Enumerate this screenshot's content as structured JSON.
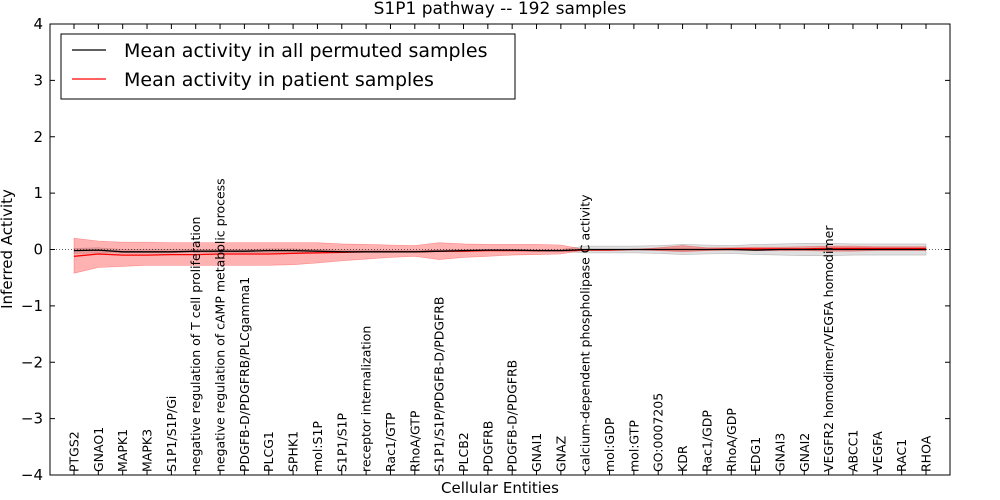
{
  "chart_data": {
    "type": "line",
    "title": "S1P1 pathway -- 192 samples",
    "xlabel": "Cellular Entities",
    "ylabel": "Inferred Activity",
    "ylim": [
      -4,
      4
    ],
    "yticks": [
      -4,
      -3,
      -2,
      -1,
      0,
      1,
      2,
      3,
      4
    ],
    "ytick_labels": [
      "−4",
      "−3",
      "−2",
      "−1",
      "0",
      "1",
      "2",
      "3",
      "4"
    ],
    "legend_position": "top-left",
    "categories": [
      "PTGS2",
      "GNAO1",
      "MAPK1",
      "MAPK3",
      "S1P1/S1P/Gi",
      "negative regulation of T cell proliferation",
      "negative regulation of cAMP metabolic process",
      "PDGFB-D/PDGFRB/PLCgamma1",
      "PLCG1",
      "SPHK1",
      "mol:S1P",
      "S1P1/S1P",
      "receptor internalization",
      "Rac1/GTP",
      "RhoA/GTP",
      "S1P1/S1P/PDGFB-D/PDGFRB",
      "PLCB2",
      "PDGFRB",
      "PDGFB-D/PDGFRB",
      "GNAI1",
      "GNAZ",
      "calcium-dependent phospholipase C activity",
      "mol:GDP",
      "mol:GTP",
      "GO:0007205",
      "KDR",
      "Rac1/GDP",
      "RhoA/GDP",
      "EDG1",
      "GNAI3",
      "GNAI2",
      "VEGFR2 homodimer/VEGFA homodimer",
      "ABCC1",
      "VEGFA",
      "RAC1",
      "RHOA"
    ],
    "series": [
      {
        "name": "Mean activity in all permuted samples",
        "color": "#000000",
        "values": [
          -0.02,
          -0.01,
          -0.04,
          -0.04,
          -0.04,
          -0.03,
          -0.03,
          -0.03,
          -0.02,
          -0.02,
          -0.03,
          -0.04,
          -0.04,
          -0.04,
          -0.04,
          -0.03,
          -0.02,
          -0.01,
          -0.01,
          -0.02,
          -0.02,
          0.0,
          0.0,
          0.0,
          0.0,
          0.0,
          0.0,
          0.0,
          -0.01,
          0.0,
          0.0,
          0.0,
          0.0,
          0.0,
          0.0,
          0.0
        ],
        "band_lower": [
          -0.07,
          -0.06,
          -0.06,
          -0.06,
          -0.06,
          -0.05,
          -0.05,
          -0.05,
          -0.05,
          -0.05,
          -0.05,
          -0.05,
          -0.05,
          -0.05,
          -0.05,
          -0.04,
          -0.03,
          -0.02,
          -0.02,
          -0.03,
          -0.03,
          -0.06,
          -0.06,
          -0.06,
          -0.07,
          -0.09,
          -0.08,
          -0.07,
          -0.09,
          -0.1,
          -0.11,
          -0.11,
          -0.1,
          -0.1,
          -0.1,
          -0.1
        ],
        "band_upper": [
          0.02,
          0.03,
          0.0,
          0.0,
          0.0,
          0.0,
          0.0,
          0.0,
          0.01,
          0.01,
          0.0,
          -0.01,
          -0.01,
          -0.02,
          -0.02,
          -0.01,
          0.0,
          0.0,
          0.0,
          0.0,
          0.0,
          0.06,
          0.06,
          0.06,
          0.07,
          0.09,
          0.08,
          0.07,
          0.09,
          0.1,
          0.11,
          0.11,
          0.1,
          0.1,
          0.1,
          0.1
        ]
      },
      {
        "name": "Mean activity in patient samples",
        "color": "#ff0000",
        "values": [
          -0.12,
          -0.08,
          -0.1,
          -0.1,
          -0.09,
          -0.09,
          -0.08,
          -0.08,
          -0.08,
          -0.07,
          -0.06,
          -0.05,
          -0.04,
          -0.04,
          -0.04,
          -0.03,
          -0.03,
          -0.02,
          -0.02,
          -0.02,
          -0.02,
          -0.01,
          -0.01,
          0.0,
          0.0,
          0.0,
          0.0,
          0.01,
          0.01,
          0.01,
          0.01,
          0.02,
          0.02,
          0.02,
          0.02,
          0.02
        ],
        "band_lower": [
          -0.42,
          -0.32,
          -0.3,
          -0.28,
          -0.28,
          -0.28,
          -0.28,
          -0.28,
          -0.28,
          -0.27,
          -0.24,
          -0.2,
          -0.17,
          -0.14,
          -0.12,
          -0.18,
          -0.14,
          -0.12,
          -0.1,
          -0.09,
          -0.08,
          -0.01,
          -0.01,
          0.0,
          -0.02,
          -0.04,
          -0.02,
          -0.01,
          -0.02,
          -0.02,
          -0.02,
          -0.03,
          -0.03,
          -0.02,
          -0.02,
          -0.02
        ],
        "band_upper": [
          0.2,
          0.15,
          0.13,
          0.13,
          0.12,
          0.12,
          0.12,
          0.12,
          0.12,
          0.12,
          0.12,
          0.1,
          0.09,
          0.08,
          0.07,
          0.12,
          0.1,
          0.09,
          0.09,
          0.09,
          0.08,
          0.0,
          0.0,
          0.0,
          0.03,
          0.07,
          0.03,
          0.03,
          0.04,
          0.04,
          0.05,
          0.06,
          0.06,
          0.05,
          0.05,
          0.05
        ]
      }
    ]
  }
}
